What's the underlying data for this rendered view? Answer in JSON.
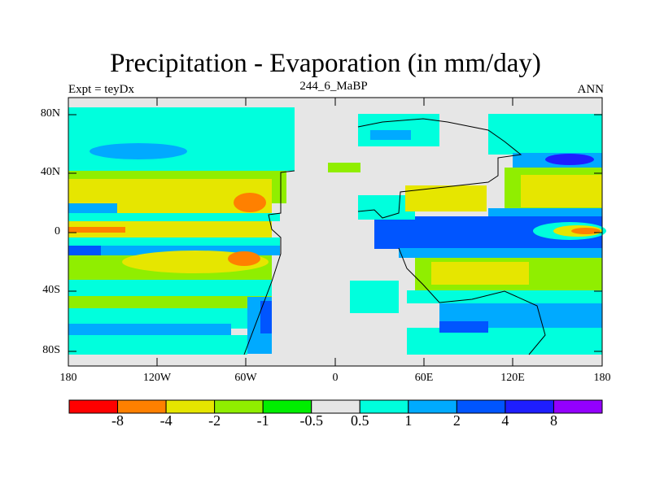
{
  "title": "Precipitation - Evaporation (in mm/day)",
  "subtitle_left": "Expt = teyDx",
  "subtitle_center": "244_6_MaBP",
  "subtitle_right": "ANN",
  "lat_labels": [
    "80N",
    "40N",
    "0",
    "40S",
    "80S"
  ],
  "lon_labels": [
    "180",
    "120W",
    "60W",
    "0",
    "60E",
    "120E",
    "180"
  ],
  "colorbar": {
    "colors": [
      "#ff0000",
      "#ff8000",
      "#e6e600",
      "#90ee00",
      "#00ee00",
      "#e6e6e6",
      "#00ffdd",
      "#00aaff",
      "#0055ff",
      "#1e1eff",
      "#9400ff"
    ],
    "labels": [
      "-8",
      "-4",
      "-2",
      "-1",
      "-0.5",
      "0.5",
      "1",
      "2",
      "4",
      "8"
    ]
  }
}
